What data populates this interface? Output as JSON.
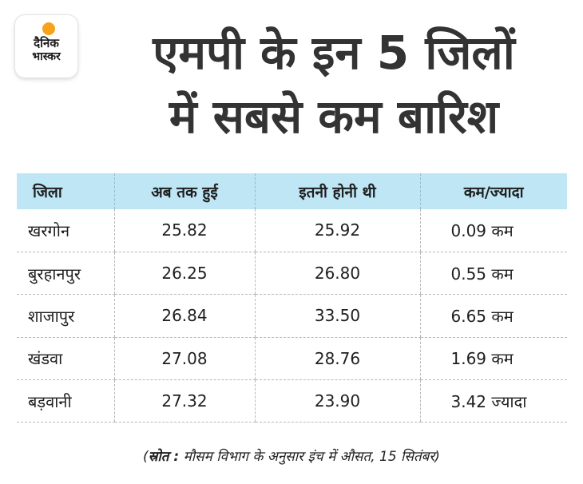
{
  "logo": {
    "line1": "दैनिक",
    "line2": "भास्कर"
  },
  "headline": {
    "line1": "एमपी के इन 5 जिलों",
    "line2": "में सबसे कम बारिश"
  },
  "table": {
    "headers": [
      "जिला",
      "अब तक हुई",
      "इतनी होनी थी",
      "कम/ज्यादा"
    ],
    "rows": [
      {
        "district": "खरगोन",
        "actual": "25.82",
        "expected": "25.92",
        "diff": "0.09 कम"
      },
      {
        "district": "बुरहानपुर",
        "actual": "26.25",
        "expected": "26.80",
        "diff": "0.55 कम"
      },
      {
        "district": "शाजापुर",
        "actual": "26.84",
        "expected": "33.50",
        "diff": "6.65 कम"
      },
      {
        "district": "खंडवा",
        "actual": "27.08",
        "expected": "28.76",
        "diff": "1.69 कम"
      },
      {
        "district": "बड़वानी",
        "actual": "27.32",
        "expected": "23.90",
        "diff": "3.42 ज्यादा"
      }
    ]
  },
  "source": {
    "open": "(",
    "label": "स्रोत :",
    "text": " मौसम विभाग के अनुसार इंच में औसत, 15 सितंबर)"
  },
  "colors": {
    "header_bg": "#bee6f5",
    "logo_sun": "#f7a21b"
  }
}
